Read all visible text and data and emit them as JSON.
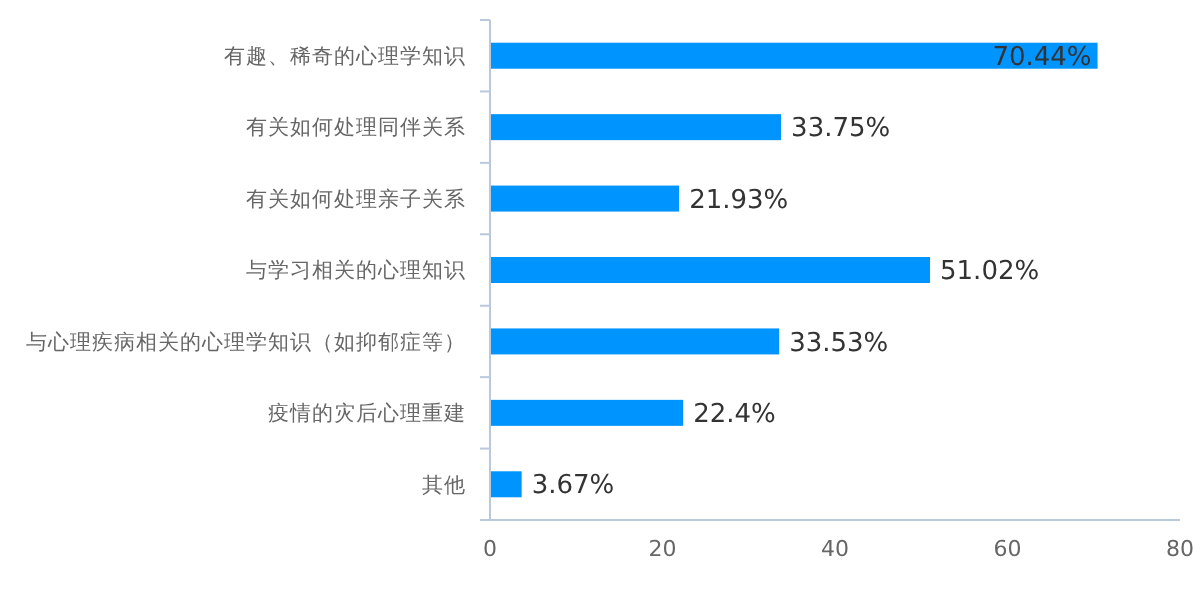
{
  "chart_data": {
    "type": "bar",
    "orientation": "horizontal",
    "categories": [
      "有趣、稀奇的心理学知识",
      "有关如何处理同伴关系",
      "有关如何处理亲子关系",
      "与学习相关的心理知识",
      "与心理疾病相关的心理学知识（如抑郁症等）",
      "疫情的灾后心理重建",
      "其他"
    ],
    "values": [
      70.44,
      33.75,
      21.93,
      51.02,
      33.53,
      22.4,
      3.67
    ],
    "value_labels": [
      "70.44%",
      "33.75%",
      "21.93%",
      "51.02%",
      "33.53%",
      "22.4%",
      "3.67%"
    ],
    "color": "#0094ff",
    "xlim": [
      0,
      80
    ],
    "xticks": [
      0,
      20,
      40,
      60,
      80
    ],
    "grid": false
  }
}
